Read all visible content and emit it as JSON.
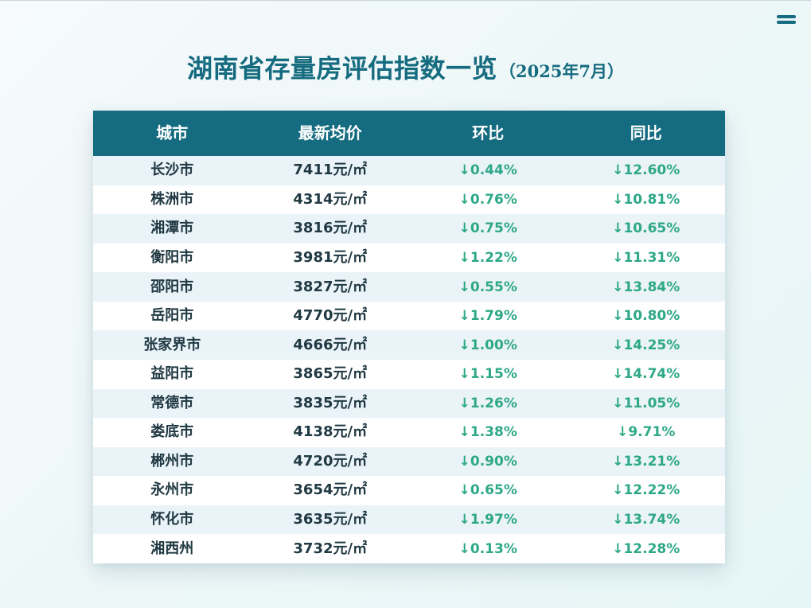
{
  "title": {
    "main": "湖南省存量房评估指数一览",
    "date": "（2025年7月）"
  },
  "table": {
    "headers": [
      "城市",
      "最新均价",
      "环比",
      "同比"
    ],
    "rows": [
      {
        "city": "长沙市",
        "price": "7411元/㎡",
        "mom": "↓0.44%",
        "yoy": "↓12.60%"
      },
      {
        "city": "株洲市",
        "price": "4314元/㎡",
        "mom": "↓0.76%",
        "yoy": "↓10.81%"
      },
      {
        "city": "湘潭市",
        "price": "3816元/㎡",
        "mom": "↓0.75%",
        "yoy": "↓10.65%"
      },
      {
        "city": "衡阳市",
        "price": "3981元/㎡",
        "mom": "↓1.22%",
        "yoy": "↓11.31%"
      },
      {
        "city": "邵阳市",
        "price": "3827元/㎡",
        "mom": "↓0.55%",
        "yoy": "↓13.84%"
      },
      {
        "city": "岳阳市",
        "price": "4770元/㎡",
        "mom": "↓1.79%",
        "yoy": "↓10.80%"
      },
      {
        "city": "张家界市",
        "price": "4666元/㎡",
        "mom": "↓1.00%",
        "yoy": "↓14.25%"
      },
      {
        "city": "益阳市",
        "price": "3865元/㎡",
        "mom": "↓1.15%",
        "yoy": "↓14.74%"
      },
      {
        "city": "常德市",
        "price": "3835元/㎡",
        "mom": "↓1.26%",
        "yoy": "↓11.05%"
      },
      {
        "city": "娄底市",
        "price": "4138元/㎡",
        "mom": "↓1.38%",
        "yoy": "↓9.71%"
      },
      {
        "city": "郴州市",
        "price": "4720元/㎡",
        "mom": "↓0.90%",
        "yoy": "↓13.21%"
      },
      {
        "city": "永州市",
        "price": "3654元/㎡",
        "mom": "↓0.65%",
        "yoy": "↓12.22%"
      },
      {
        "city": "怀化市",
        "price": "3635元/㎡",
        "mom": "↓1.97%",
        "yoy": "↓13.74%"
      },
      {
        "city": "湘西州",
        "price": "3732元/㎡",
        "mom": "↓0.13%",
        "yoy": "↓12.28%"
      }
    ]
  },
  "icons": {
    "menu": "menu-icon"
  },
  "colors": {
    "accent": "#156b7f",
    "header_text": "#ffffff",
    "body_text": "#203943",
    "decline": "#2ea887",
    "row_alt": "#eaf3f8",
    "row_plain": "#ffffff"
  }
}
